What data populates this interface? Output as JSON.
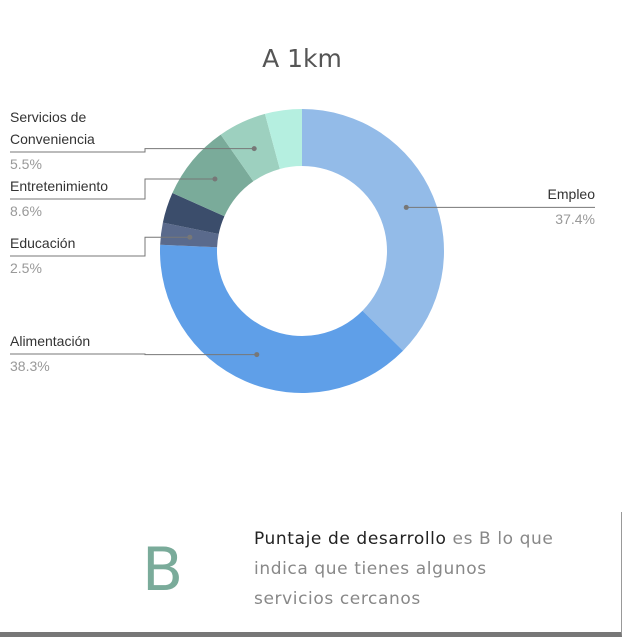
{
  "chart_data": {
    "type": "pie",
    "donut": true,
    "title": "A 1km",
    "categories": [
      "Empleo",
      "Alimentación",
      "Educación",
      null,
      "Entretenimiento",
      "Servicios de Conveniencia",
      null
    ],
    "values": [
      37.4,
      38.3,
      2.5,
      3.5,
      8.6,
      5.5,
      4.2
    ],
    "value_labels": [
      "37.4%",
      "38.3%",
      "2.5%",
      null,
      "8.6%",
      "5.5%",
      null
    ],
    "colors": [
      "#93bbe8",
      "#5f9fe8",
      "#5a6a8c",
      "#3b4d6b",
      "#7aab9a",
      "#9dd0bf",
      "#b5efe0"
    ]
  },
  "card": {
    "grade": "B",
    "highlight": "Puntaje de desarrollo",
    "text": "es B lo que indica que tienes algunos servicios cercanos"
  }
}
